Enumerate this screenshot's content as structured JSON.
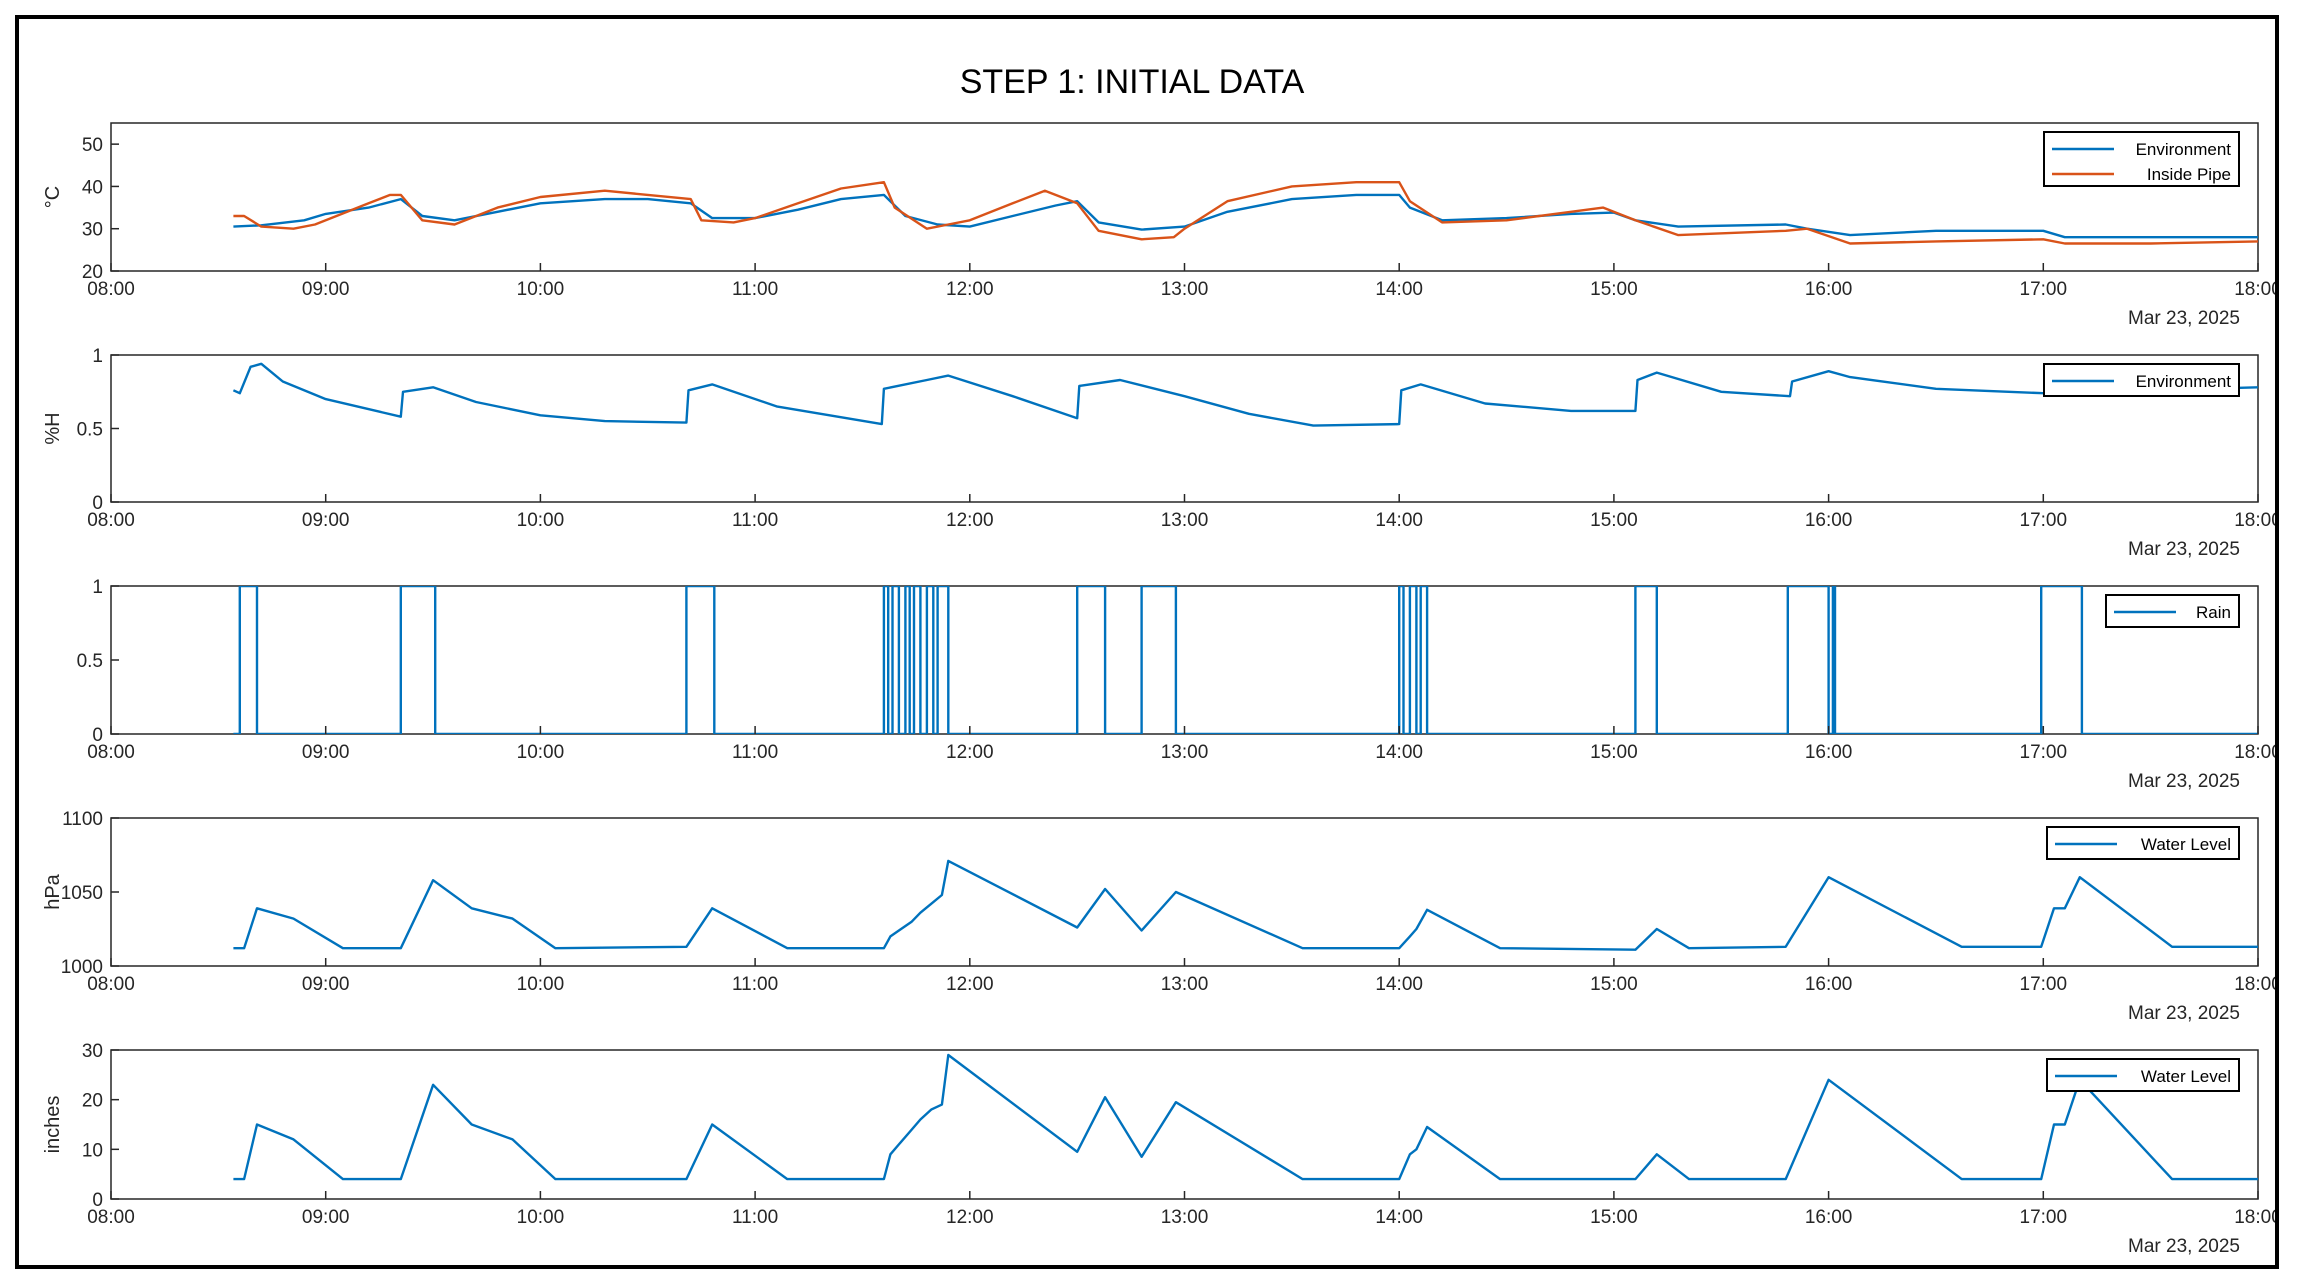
{
  "title": "STEP 1: INITIAL DATA",
  "colors": {
    "blue": "#0072BD",
    "orange": "#D95319",
    "axis": "#262626"
  },
  "chart_data": [
    {
      "type": "line",
      "ylabel": "°C",
      "ylim": [
        20,
        55
      ],
      "yticks": [
        "20",
        "30",
        "40",
        "50"
      ],
      "ytick_values": [
        20,
        30,
        40,
        50
      ],
      "xlim": [
        8,
        18
      ],
      "xticks": [
        "08:00",
        "09:00",
        "10:00",
        "11:00",
        "12:00",
        "13:00",
        "14:00",
        "15:00",
        "16:00",
        "17:00",
        "18:00"
      ],
      "date_label": "Mar 23, 2025",
      "legend_position": "top-right",
      "series": [
        {
          "name": "Environment",
          "color": "#0072BD",
          "x": [
            8.57,
            8.7,
            8.9,
            9.0,
            9.2,
            9.35,
            9.45,
            9.6,
            9.8,
            10.0,
            10.3,
            10.5,
            10.7,
            10.8,
            11.0,
            11.2,
            11.4,
            11.6,
            11.7,
            11.85,
            12.0,
            12.2,
            12.4,
            12.5,
            12.6,
            12.8,
            13.0,
            13.2,
            13.5,
            13.8,
            14.0,
            14.05,
            14.2,
            14.5,
            14.8,
            15.0,
            15.1,
            15.3,
            15.8,
            15.9,
            16.1,
            16.5,
            17.0,
            17.1,
            17.5,
            18.0
          ],
          "values": [
            30.5,
            30.8,
            32,
            33.5,
            35,
            37,
            33,
            32,
            34,
            36,
            37,
            37,
            36,
            32.5,
            32.5,
            34.5,
            37,
            38,
            33,
            31,
            30.5,
            33,
            35.5,
            36.5,
            31.5,
            29.8,
            30.5,
            34,
            37,
            38,
            38,
            35,
            32,
            32.5,
            33.5,
            33.8,
            32,
            30.5,
            31,
            30,
            28.5,
            29.5,
            29.5,
            28,
            28,
            28
          ]
        },
        {
          "name": "Inside Pipe",
          "color": "#D95319",
          "x": [
            8.57,
            8.62,
            8.7,
            8.85,
            8.95,
            9.1,
            9.2,
            9.3,
            9.35,
            9.45,
            9.6,
            9.8,
            10.0,
            10.3,
            10.5,
            10.7,
            10.75,
            10.9,
            11.0,
            11.2,
            11.4,
            11.6,
            11.65,
            11.8,
            11.9,
            12.0,
            12.2,
            12.35,
            12.5,
            12.6,
            12.8,
            12.95,
            13.0,
            13.2,
            13.5,
            13.8,
            14.0,
            14.05,
            14.2,
            14.5,
            14.8,
            14.95,
            15.1,
            15.3,
            15.8,
            15.9,
            16.1,
            16.5,
            17.0,
            17.1,
            17.5,
            18.0
          ],
          "values": [
            33,
            33,
            30.5,
            30,
            31,
            34,
            36,
            38,
            38,
            32,
            31,
            35,
            37.5,
            39,
            38,
            37,
            32,
            31.5,
            32.5,
            36,
            39.5,
            41,
            35,
            30,
            31,
            32,
            36,
            39,
            36,
            29.5,
            27.5,
            28,
            30,
            36.5,
            40,
            41,
            41,
            36.5,
            31.5,
            32,
            34,
            35,
            32,
            28.5,
            29.5,
            30,
            26.5,
            27,
            27.5,
            26.5,
            26.5,
            27
          ]
        }
      ]
    },
    {
      "type": "line",
      "ylabel": "%H",
      "ylim": [
        0,
        1
      ],
      "yticks": [
        "0",
        "0.5",
        "1"
      ],
      "ytick_values": [
        0,
        0.5,
        1
      ],
      "xlim": [
        8,
        18
      ],
      "xticks": [
        "08:00",
        "09:00",
        "10:00",
        "11:00",
        "12:00",
        "13:00",
        "14:00",
        "15:00",
        "16:00",
        "17:00",
        "18:00"
      ],
      "date_label": "Mar 23, 2025",
      "legend_position": "top-right",
      "series": [
        {
          "name": "Environment",
          "color": "#0072BD",
          "x": [
            8.57,
            8.6,
            8.65,
            8.7,
            8.8,
            9.0,
            9.35,
            9.36,
            9.5,
            9.7,
            10.0,
            10.3,
            10.68,
            10.69,
            10.8,
            11.1,
            11.59,
            11.6,
            11.8,
            11.9,
            12.2,
            12.5,
            12.51,
            12.7,
            13.0,
            13.3,
            13.6,
            14.0,
            14.01,
            14.1,
            14.4,
            14.8,
            15.1,
            15.11,
            15.2,
            15.5,
            15.82,
            15.83,
            16.0,
            16.1,
            16.5,
            17.0,
            17.5,
            18.0
          ],
          "values": [
            0.76,
            0.74,
            0.92,
            0.94,
            0.82,
            0.7,
            0.58,
            0.75,
            0.78,
            0.68,
            0.59,
            0.55,
            0.54,
            0.76,
            0.8,
            0.65,
            0.53,
            0.77,
            0.83,
            0.86,
            0.72,
            0.57,
            0.79,
            0.83,
            0.72,
            0.6,
            0.52,
            0.53,
            0.76,
            0.8,
            0.67,
            0.62,
            0.62,
            0.83,
            0.88,
            0.75,
            0.72,
            0.82,
            0.89,
            0.85,
            0.77,
            0.74,
            0.76,
            0.78
          ]
        }
      ]
    },
    {
      "type": "line",
      "ylabel": "",
      "ylim": [
        0,
        1
      ],
      "yticks": [
        "0",
        "0.5",
        "1"
      ],
      "ytick_values": [
        0,
        0.5,
        1
      ],
      "xlim": [
        8,
        18
      ],
      "xticks": [
        "08:00",
        "09:00",
        "10:00",
        "11:00",
        "12:00",
        "13:00",
        "14:00",
        "15:00",
        "16:00",
        "17:00",
        "18:00"
      ],
      "date_label": "Mar 23, 2025",
      "legend_position": "top-right",
      "series": [
        {
          "name": "Rain",
          "color": "#0072BD",
          "pulses": [
            [
              8.6,
              8.68
            ],
            [
              9.35,
              9.51
            ],
            [
              10.68,
              10.81
            ],
            [
              11.6,
              11.62
            ],
            [
              11.64,
              11.67
            ],
            [
              11.7,
              11.72
            ],
            [
              11.74,
              11.77
            ],
            [
              11.8,
              11.83
            ],
            [
              11.85,
              11.9
            ],
            [
              12.5,
              12.63
            ],
            [
              12.8,
              12.96
            ],
            [
              14.0,
              14.02
            ],
            [
              14.05,
              14.08
            ],
            [
              14.1,
              14.13
            ],
            [
              15.1,
              15.2
            ],
            [
              15.81,
              16.0
            ],
            [
              16.02,
              16.03
            ],
            [
              16.99,
              17.18
            ]
          ]
        }
      ]
    },
    {
      "type": "line",
      "ylabel": "hPa",
      "ylim": [
        1000,
        1100
      ],
      "yticks": [
        "1000",
        "1050",
        "1100"
      ],
      "ytick_values": [
        1000,
        1050,
        1100
      ],
      "xlim": [
        8,
        18
      ],
      "xticks": [
        "08:00",
        "09:00",
        "10:00",
        "11:00",
        "12:00",
        "13:00",
        "14:00",
        "15:00",
        "16:00",
        "17:00",
        "18:00"
      ],
      "date_label": "Mar 23, 2025",
      "legend_position": "top-right",
      "series": [
        {
          "name": "Water Level",
          "color": "#0072BD",
          "x": [
            8.57,
            8.62,
            8.68,
            8.85,
            9.08,
            9.35,
            9.5,
            9.68,
            9.87,
            10.07,
            10.68,
            10.8,
            11.15,
            11.6,
            11.63,
            11.67,
            11.73,
            11.77,
            11.82,
            11.87,
            11.9,
            12.5,
            12.63,
            12.8,
            12.96,
            13.55,
            14.0,
            14.05,
            14.08,
            14.13,
            14.47,
            15.1,
            15.2,
            15.35,
            15.8,
            16.0,
            16.62,
            16.99,
            17.05,
            17.1,
            17.17,
            17.6,
            18.0
          ],
          "values": [
            1012,
            1012,
            1039,
            1032,
            1012,
            1012,
            1058,
            1039,
            1032,
            1012,
            1013,
            1039,
            1012,
            1012,
            1020,
            1024,
            1030,
            1036,
            1042,
            1048,
            1071,
            1026,
            1052,
            1024,
            1050,
            1012,
            1012,
            1020,
            1025,
            1038,
            1012,
            1011,
            1025,
            1012,
            1013,
            1060,
            1013,
            1013,
            1039,
            1039,
            1060,
            1013,
            1013
          ]
        }
      ]
    },
    {
      "type": "line",
      "ylabel": "inches",
      "ylim": [
        0,
        30
      ],
      "yticks": [
        "0",
        "10",
        "20",
        "30"
      ],
      "ytick_values": [
        0,
        10,
        20,
        30
      ],
      "xlim": [
        8,
        18
      ],
      "xticks": [
        "08:00",
        "09:00",
        "10:00",
        "11:00",
        "12:00",
        "13:00",
        "14:00",
        "15:00",
        "16:00",
        "17:00",
        "18:00"
      ],
      "date_label": "Mar 23, 2025",
      "legend_position": "top-right",
      "series": [
        {
          "name": "Water Level",
          "color": "#0072BD",
          "x": [
            8.57,
            8.62,
            8.68,
            8.85,
            9.08,
            9.35,
            9.5,
            9.68,
            9.87,
            10.07,
            10.68,
            10.8,
            11.15,
            11.6,
            11.63,
            11.67,
            11.73,
            11.77,
            11.82,
            11.87,
            11.9,
            12.5,
            12.63,
            12.8,
            12.96,
            13.55,
            14.0,
            14.05,
            14.08,
            14.13,
            14.47,
            15.1,
            15.2,
            15.35,
            15.8,
            16.0,
            16.62,
            16.99,
            17.05,
            17.1,
            17.17,
            17.6,
            18.0
          ],
          "values": [
            4,
            4,
            15,
            12,
            4,
            4,
            23,
            15,
            12,
            4,
            4,
            15,
            4,
            4,
            9,
            11,
            14,
            16,
            18,
            19,
            29,
            9.5,
            20.5,
            8.5,
            19.5,
            4,
            4,
            9,
            10,
            14.5,
            4,
            4,
            9,
            4,
            4,
            24,
            4,
            4,
            15,
            15,
            24,
            4,
            4
          ]
        }
      ]
    }
  ]
}
